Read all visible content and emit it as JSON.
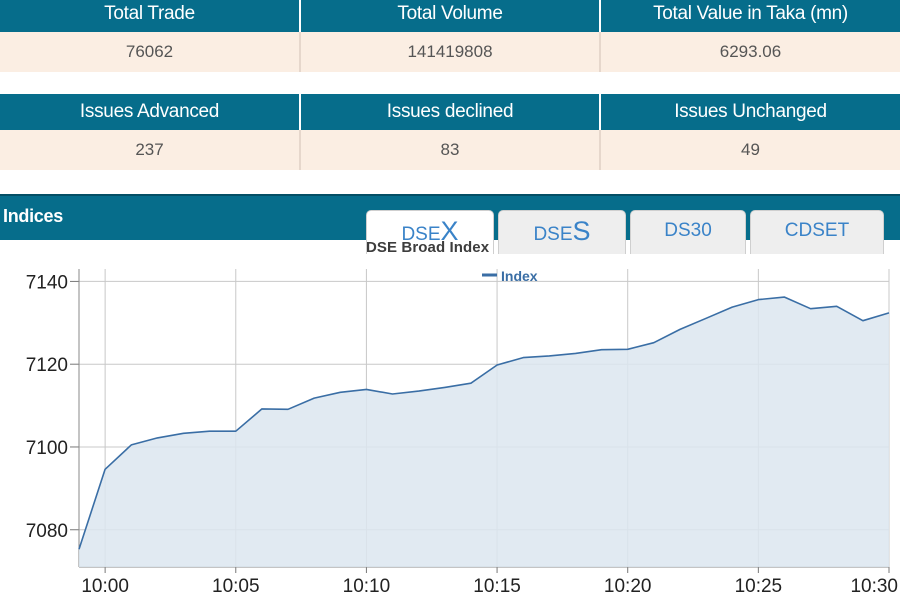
{
  "stats_row1": {
    "headers": [
      "Total Trade",
      "Total Volume",
      "Total Value in Taka (mn)"
    ],
    "values": [
      "76062",
      "141419808",
      "6293.06"
    ]
  },
  "stats_row2": {
    "headers": [
      "Issues Advanced",
      "Issues declined",
      "Issues Unchanged"
    ],
    "values": [
      "237",
      "83",
      "49"
    ]
  },
  "indices": {
    "title": "Indices",
    "tabs": [
      {
        "prefix": "DSE",
        "suffix": "X",
        "active": true
      },
      {
        "prefix": "DSE",
        "suffix": "S",
        "active": false
      },
      {
        "label": "DS30",
        "active": false
      },
      {
        "label": "CDSET",
        "active": false
      }
    ]
  },
  "colors": {
    "header_bg": "#066d8b",
    "cell_bg": "#fbeee3",
    "line": "#3a6ea5",
    "area_fill": "#dce6f0",
    "tab_text": "#3a83c8"
  },
  "chart_data": {
    "type": "area",
    "title": "DSE Broad Index",
    "series": [
      {
        "name": "Index",
        "x": [
          "9:59",
          "10:00",
          "10:01",
          "10:02",
          "10:03",
          "10:04",
          "10:05",
          "10:06",
          "10:07",
          "10:08",
          "10:09",
          "10:10",
          "10:11",
          "10:12",
          "10:13",
          "10:14",
          "10:15",
          "10:16",
          "10:17",
          "10:18",
          "10:19",
          "10:20",
          "10:21",
          "10:22",
          "10:23",
          "10:24",
          "10:25",
          "10:26",
          "10:27",
          "10:28",
          "10:29",
          "10:30"
        ],
        "values": [
          7075.3,
          7094.6,
          7100.5,
          7102.2,
          7103.3,
          7103.8,
          7103.8,
          7109.2,
          7109.1,
          7111.8,
          7113.2,
          7113.9,
          7112.8,
          7113.5,
          7114.4,
          7115.4,
          7119.8,
          7121.6,
          7122.0,
          7122.6,
          7123.5,
          7123.6,
          7125.2,
          7128.4,
          7131.1,
          7133.8,
          7135.6,
          7136.2,
          7133.4,
          7134.0,
          7130.5,
          7132.4
        ]
      }
    ],
    "x_ticks": [
      "10:00",
      "10:05",
      "10:10",
      "10:15",
      "10:20",
      "10:25",
      "10:30"
    ],
    "y_ticks": [
      7080,
      7100,
      7120,
      7140
    ],
    "ylim": [
      7071,
      7143
    ],
    "xlim": [
      "9:59",
      "10:30"
    ],
    "grid": true,
    "legend": "top-center"
  }
}
